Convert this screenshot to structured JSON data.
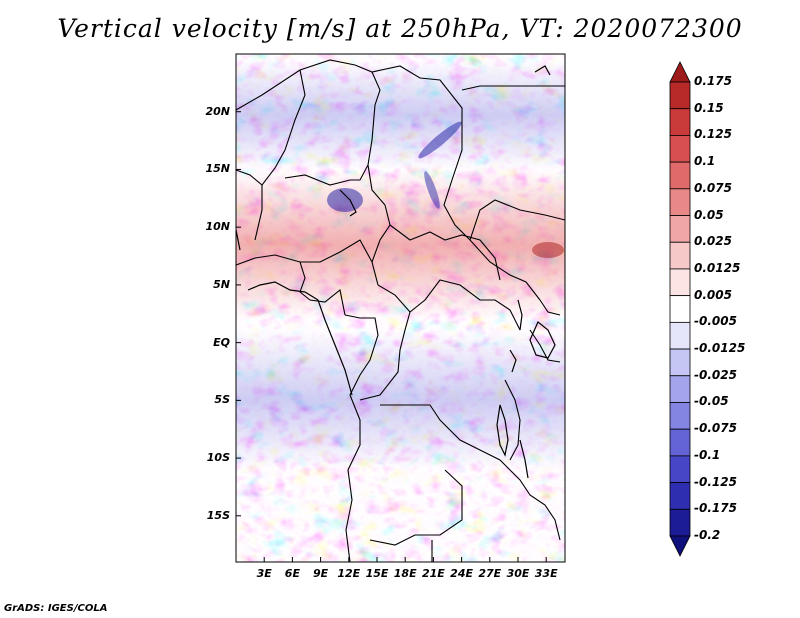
{
  "title": "Vertical velocity [m/s] at 250hPa, VT: 2020072300",
  "credit": "GrADS: IGES/COLA",
  "map": {
    "lon_range": [
      0,
      35
    ],
    "lat_range": [
      -19,
      25
    ],
    "lat_ticks": [
      "20N",
      "15N",
      "10N",
      "5N",
      "EQ",
      "5S",
      "10S",
      "15S"
    ],
    "lat_tick_values": [
      20,
      15,
      10,
      5,
      0,
      -5,
      -10,
      -15
    ],
    "lon_ticks": [
      "3E",
      "6E",
      "9E",
      "12E",
      "15E",
      "18E",
      "21E",
      "24E",
      "27E",
      "30E",
      "33E"
    ],
    "lon_tick_values": [
      3,
      6,
      9,
      12,
      15,
      18,
      21,
      24,
      27,
      30,
      33
    ]
  },
  "colorbar": {
    "labels": [
      "0.175",
      "0.15",
      "0.125",
      "0.1",
      "0.075",
      "0.05",
      "0.025",
      "0.0125",
      "0.005",
      "-0.005",
      "-0.0125",
      "-0.025",
      "-0.05",
      "-0.075",
      "-0.1",
      "-0.125",
      "-0.175",
      "-0.2"
    ],
    "colors": [
      "#9e1b1b",
      "#b82a2a",
      "#c93a3a",
      "#d65050",
      "#e06a6a",
      "#e88888",
      "#f0a6a6",
      "#f7c8c8",
      "#fce4e4",
      "#ffffff",
      "#e6e6fb",
      "#c6c6f4",
      "#a4a4ec",
      "#8484e2",
      "#6464d6",
      "#4646c6",
      "#2e2eb0",
      "#1c1c96",
      "#10107a"
    ]
  }
}
